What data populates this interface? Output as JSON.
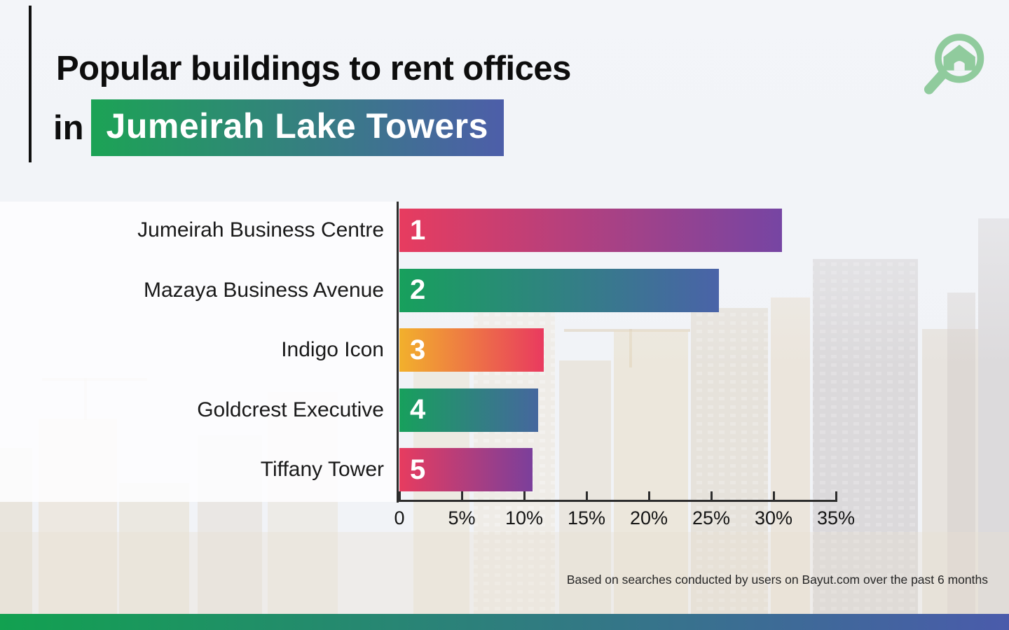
{
  "title": {
    "line1": "Popular buildings to rent offices",
    "line2_prefix": "in",
    "line2_highlight": "Jumeirah Lake Towers"
  },
  "logo": {
    "name": "house-magnifier-logo",
    "color": "#90cb9d"
  },
  "chart_data": {
    "type": "bar",
    "orientation": "horizontal",
    "title": "Popular buildings to rent offices in Jumeirah Lake Towers",
    "categories": [
      "Jumeirah Business Centre",
      "Mazaya Business Avenue",
      "Indigo Icon",
      "Goldcrest Executive",
      "Tiffany Tower"
    ],
    "values": [
      30.7,
      25.6,
      11.6,
      11.1,
      10.7
    ],
    "rank_labels": [
      "1",
      "2",
      "3",
      "4",
      "5"
    ],
    "unit": "%",
    "xlim": [
      0,
      35
    ],
    "x_tick_values": [
      0,
      5,
      10,
      15,
      20,
      25,
      30,
      35
    ],
    "x_tick_labels": [
      "0",
      "5%",
      "10%",
      "15%",
      "20%",
      "25%",
      "30%",
      "35%"
    ],
    "legend": "none",
    "grid": "off",
    "bar_gradients": [
      {
        "from": "#e73c5f",
        "to": "#7645a3"
      },
      {
        "from": "#17a05c",
        "to": "#4a63a8"
      },
      {
        "from": "#f2b02c",
        "to": "#e93a5f"
      },
      {
        "from": "#17a05c",
        "to": "#45679e"
      },
      {
        "from": "#e73c5f",
        "to": "#7b3f9b"
      }
    ]
  },
  "footnote": "Based on searches conducted by users on Bayut.com over the past 6 months",
  "colors": {
    "title_highlight_from": "#1ca355",
    "title_highlight_to": "#4d5ea9",
    "bottom_bar_from": "#12a150",
    "bottom_bar_to": "#4a5bab",
    "axis": "#2d2d2d",
    "text": "#0d0d0d"
  }
}
